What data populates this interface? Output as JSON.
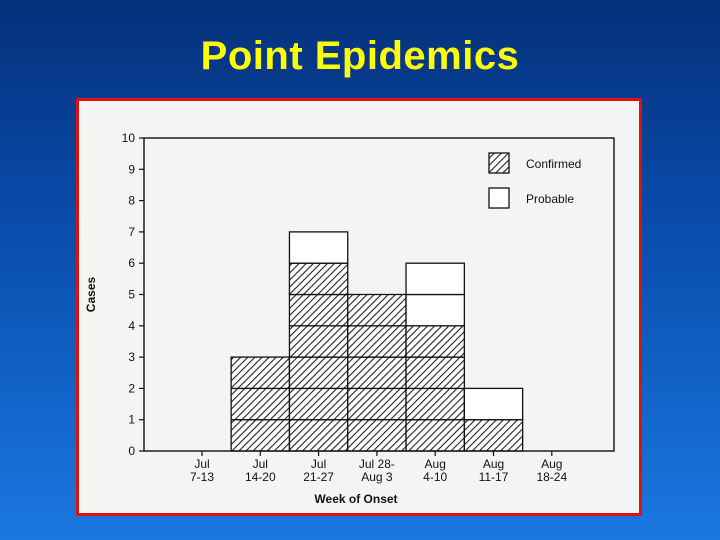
{
  "slide": {
    "title": "Point Epidemics"
  },
  "chart_data": {
    "type": "bar",
    "stacked": true,
    "categories": [
      [
        "Jul",
        "7-13"
      ],
      [
        "Jul",
        "14-20"
      ],
      [
        "Jul",
        "21-27"
      ],
      [
        "Jul 28-",
        "Aug 3"
      ],
      [
        "Aug",
        "4-10"
      ],
      [
        "Aug",
        "11-17"
      ],
      [
        "Aug",
        "18-24"
      ]
    ],
    "series": [
      {
        "name": "Confirmed",
        "values": [
          0,
          3,
          6,
          5,
          4,
          1,
          0
        ],
        "pattern": "diagonal-hatch"
      },
      {
        "name": "Probable",
        "values": [
          0,
          0,
          1,
          0,
          2,
          1,
          0
        ],
        "pattern": "none"
      }
    ],
    "xlabel": "Week of Onset",
    "ylabel": "Cases",
    "ylim": [
      0,
      10
    ],
    "yticks": [
      0,
      1,
      2,
      3,
      4,
      5,
      6,
      7,
      8,
      9,
      10
    ],
    "grid": false,
    "legend_position": "top-right",
    "colors": {
      "bar_fill": "#ffffff",
      "hatch": "#222222",
      "axis": "#111111"
    }
  }
}
